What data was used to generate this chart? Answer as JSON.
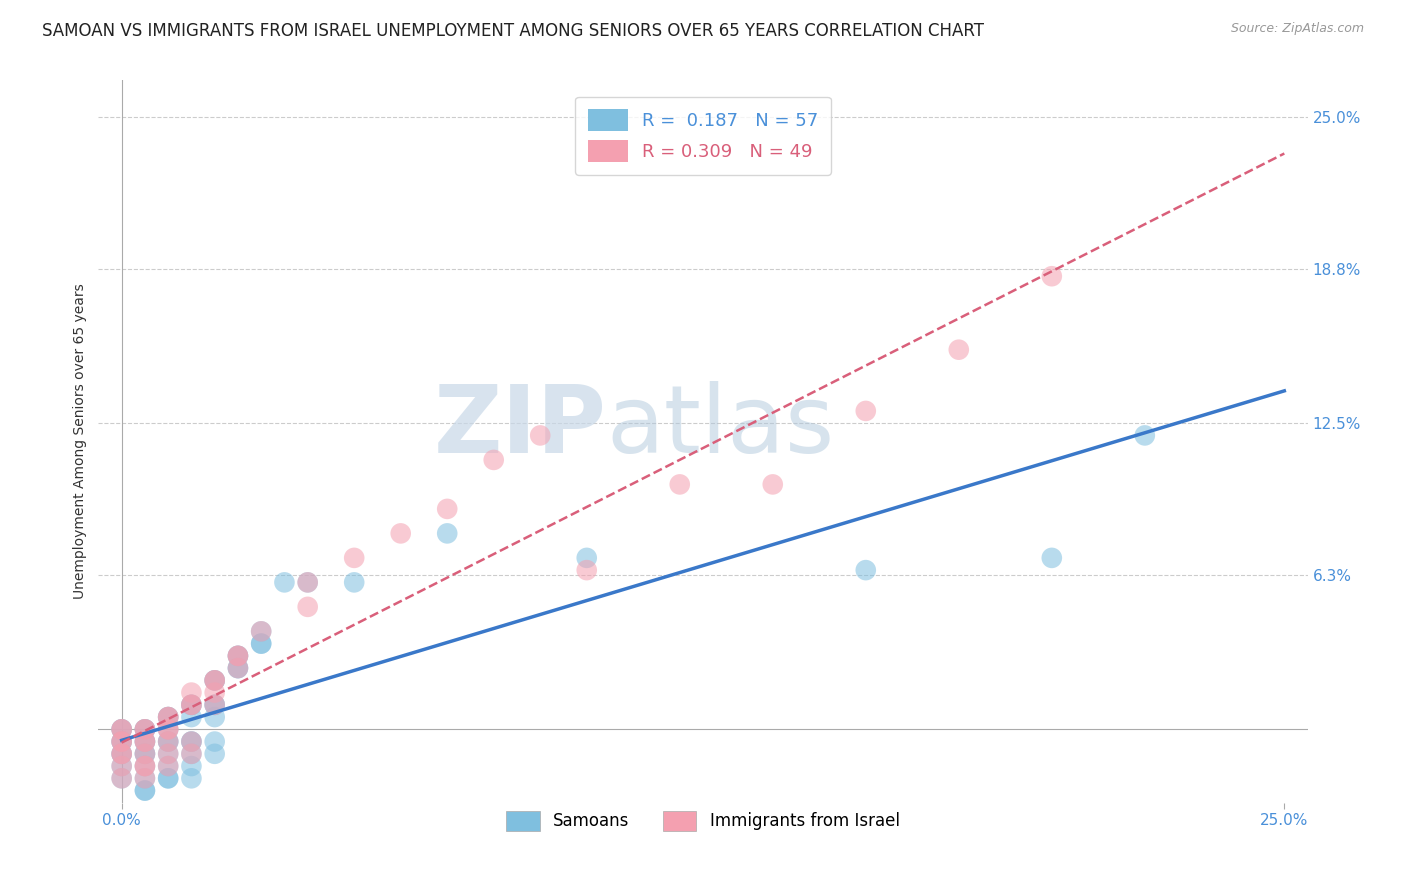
{
  "title": "SAMOAN VS IMMIGRANTS FROM ISRAEL UNEMPLOYMENT AMONG SENIORS OVER 65 YEARS CORRELATION CHART",
  "source": "Source: ZipAtlas.com",
  "ylabel": "Unemployment Among Seniors over 65 years",
  "xlabel": "",
  "xlim": [
    -0.005,
    0.255
  ],
  "ylim": [
    -0.03,
    0.265
  ],
  "xticks": [
    0.0,
    0.25
  ],
  "xticklabels": [
    "0.0%",
    "25.0%"
  ],
  "ytick_positions": [
    0.0,
    0.063,
    0.125,
    0.188,
    0.25
  ],
  "yticklabels": [
    "",
    "6.3%",
    "12.5%",
    "18.8%",
    "25.0%"
  ],
  "blue_R": 0.187,
  "blue_N": 57,
  "pink_R": 0.309,
  "pink_N": 49,
  "blue_color": "#7fbfdf",
  "pink_color": "#f4a0b0",
  "blue_line_color": "#3a78c9",
  "pink_line_color": "#d95f7a",
  "watermark_zip": "ZIP",
  "watermark_atlas": "atlas",
  "samoans_x": [
    0.0,
    0.0,
    0.0,
    0.0,
    0.0,
    0.0,
    0.0,
    0.0,
    0.005,
    0.005,
    0.005,
    0.005,
    0.005,
    0.005,
    0.005,
    0.005,
    0.005,
    0.005,
    0.01,
    0.01,
    0.01,
    0.01,
    0.01,
    0.01,
    0.01,
    0.01,
    0.01,
    0.015,
    0.015,
    0.015,
    0.015,
    0.015,
    0.015,
    0.015,
    0.015,
    0.02,
    0.02,
    0.02,
    0.02,
    0.02,
    0.02,
    0.02,
    0.025,
    0.025,
    0.025,
    0.025,
    0.03,
    0.03,
    0.03,
    0.035,
    0.04,
    0.05,
    0.07,
    0.1,
    0.16,
    0.2,
    0.22
  ],
  "samoans_y": [
    0.0,
    0.0,
    -0.005,
    -0.005,
    -0.01,
    -0.01,
    -0.015,
    -0.02,
    0.0,
    0.0,
    -0.005,
    -0.005,
    -0.01,
    -0.01,
    -0.015,
    -0.02,
    -0.025,
    -0.025,
    0.0,
    0.005,
    0.005,
    -0.005,
    -0.005,
    -0.01,
    -0.015,
    -0.02,
    -0.02,
    0.005,
    0.01,
    0.01,
    -0.005,
    -0.005,
    -0.01,
    -0.015,
    -0.02,
    0.02,
    0.02,
    0.01,
    0.01,
    0.005,
    -0.005,
    -0.01,
    0.025,
    0.03,
    0.025,
    0.03,
    0.035,
    0.04,
    0.035,
    0.06,
    0.06,
    0.06,
    0.08,
    0.07,
    0.065,
    0.07,
    0.12
  ],
  "israel_x": [
    0.0,
    0.0,
    0.0,
    0.0,
    0.0,
    0.0,
    0.0,
    0.0,
    0.005,
    0.005,
    0.005,
    0.005,
    0.005,
    0.005,
    0.005,
    0.005,
    0.01,
    0.01,
    0.01,
    0.01,
    0.01,
    0.01,
    0.01,
    0.015,
    0.015,
    0.015,
    0.015,
    0.015,
    0.02,
    0.02,
    0.02,
    0.02,
    0.025,
    0.025,
    0.025,
    0.03,
    0.04,
    0.04,
    0.05,
    0.06,
    0.07,
    0.08,
    0.09,
    0.1,
    0.12,
    0.14,
    0.16,
    0.18,
    0.2
  ],
  "israel_y": [
    0.0,
    0.0,
    -0.005,
    -0.005,
    -0.01,
    -0.01,
    -0.015,
    -0.02,
    0.0,
    0.0,
    -0.005,
    -0.005,
    -0.01,
    -0.015,
    -0.015,
    -0.02,
    0.005,
    0.005,
    0.0,
    0.0,
    -0.005,
    -0.01,
    -0.015,
    0.01,
    0.015,
    0.01,
    -0.005,
    -0.01,
    0.02,
    0.02,
    0.015,
    0.01,
    0.03,
    0.03,
    0.025,
    0.04,
    0.06,
    0.05,
    0.07,
    0.08,
    0.09,
    0.11,
    0.12,
    0.065,
    0.1,
    0.1,
    0.13,
    0.155,
    0.185
  ],
  "grid_color": "#cccccc",
  "background_color": "#ffffff",
  "title_fontsize": 12,
  "axis_label_fontsize": 10,
  "tick_fontsize": 11
}
